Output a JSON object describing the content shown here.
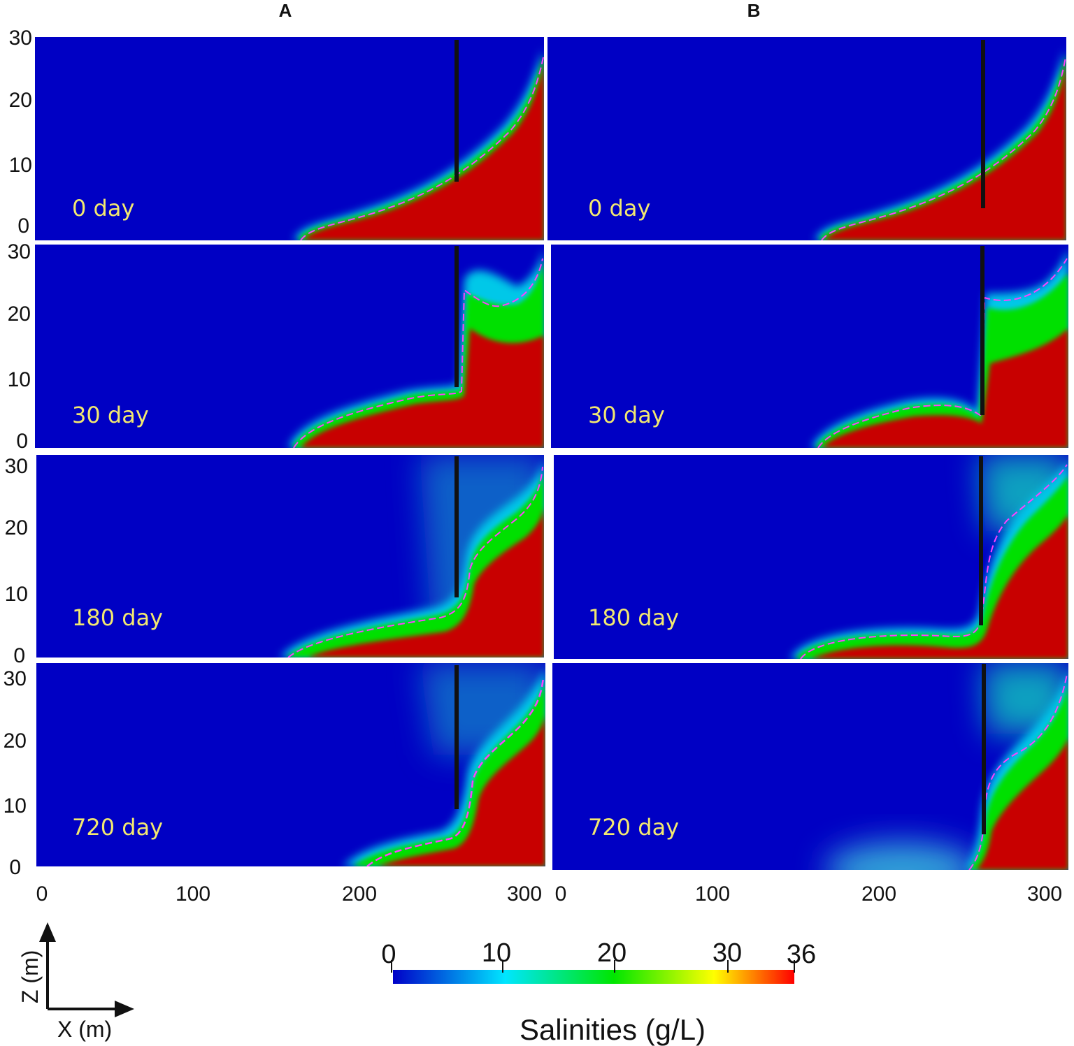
{
  "columns": [
    "A",
    "B"
  ],
  "panels": [
    {
      "column": "A",
      "time_label": "0 day"
    },
    {
      "column": "B",
      "time_label": "0 day"
    },
    {
      "column": "A",
      "time_label": "30 day"
    },
    {
      "column": "B",
      "time_label": "30 day"
    },
    {
      "column": "A",
      "time_label": "180 day"
    },
    {
      "column": "B",
      "time_label": "180 day"
    },
    {
      "column": "A",
      "time_label": "720 day"
    },
    {
      "column": "B",
      "time_label": "720 day"
    }
  ],
  "z_ticks": [
    "30",
    "20",
    "10",
    "0"
  ],
  "x_ticks": [
    "0",
    "100",
    "200",
    "300"
  ],
  "colorbar": {
    "title": "Salinities (g/L)",
    "ticks": [
      "0",
      "10",
      "20",
      "30",
      "36"
    ],
    "colors": [
      "#0000c8",
      "#00e6ff",
      "#00e600",
      "#ffff00",
      "#ff0000"
    ]
  },
  "axes_indicator": {
    "z_label": "Z (m)",
    "x_label": "X (m)"
  }
}
